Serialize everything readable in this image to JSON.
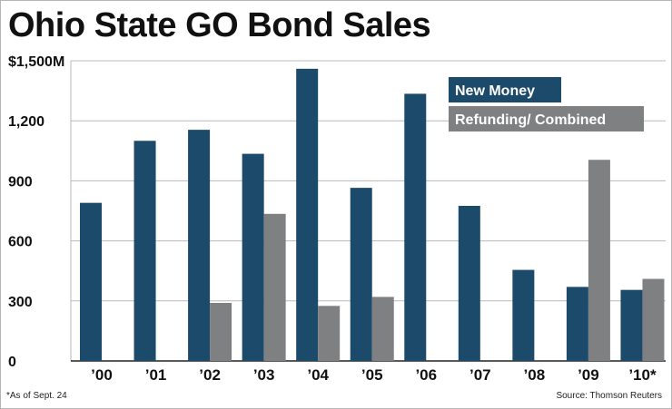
{
  "title": "Ohio State GO Bond Sales",
  "footnote": "*As of Sept. 24",
  "source": "Source: Thomson Reuters",
  "colors": {
    "new_money": "#1b4a6b",
    "refunding": "#7f8082",
    "grid": "#b9b9b9",
    "axis": "#222222"
  },
  "chart_data": {
    "type": "bar",
    "title": "Ohio State GO Bond Sales",
    "xlabel": "",
    "ylabel": "",
    "categories": [
      "’00",
      "’01",
      "’02",
      "’03",
      "’04",
      "’05",
      "’06",
      "’07",
      "’08",
      "’09",
      "’10*"
    ],
    "series": [
      {
        "name": "New Money",
        "color": "#1b4a6b",
        "values": [
          790,
          1100,
          1155,
          1035,
          1460,
          865,
          1335,
          775,
          455,
          370,
          355
        ]
      },
      {
        "name": "Refunding/ Combined",
        "color": "#7f8082",
        "values": [
          null,
          null,
          290,
          735,
          275,
          320,
          null,
          null,
          null,
          1005,
          410
        ]
      }
    ],
    "ylim": [
      0,
      1500
    ],
    "yticks": [
      0,
      300,
      600,
      900,
      1200,
      1500
    ],
    "ytick_labels": [
      "0",
      "300",
      "600",
      "900",
      "1,200",
      "$1,500M"
    ],
    "grid": true,
    "legend_position": "top-right"
  }
}
